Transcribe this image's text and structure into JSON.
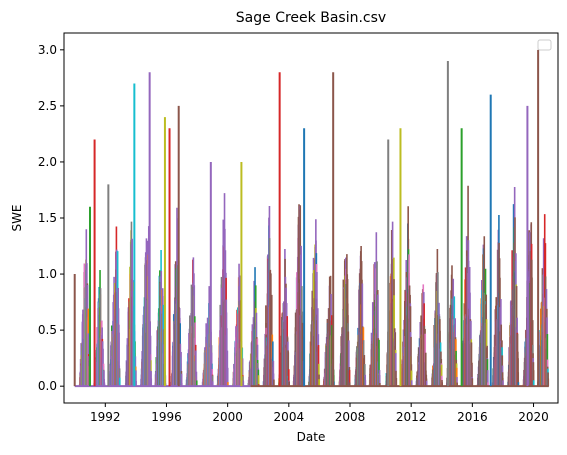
{
  "chart_data": {
    "type": "line",
    "title": "Sage Creek Basin.csv",
    "xlabel": "Date",
    "ylabel": "SWE",
    "xlim": [
      1989.3,
      2021.6
    ],
    "ylim": [
      -0.15,
      3.15
    ],
    "x_ticks": [
      1992,
      1996,
      2000,
      2004,
      2008,
      2012,
      2016,
      2020
    ],
    "x_tick_labels": [
      "1992",
      "1996",
      "2000",
      "2004",
      "2008",
      "2012",
      "2016",
      "2020"
    ],
    "y_ticks": [
      0.0,
      0.5,
      1.0,
      1.5,
      2.0,
      2.5,
      3.0
    ],
    "y_tick_labels": [
      "0.0",
      "0.5",
      "1.0",
      "1.5",
      "2.0",
      "2.5",
      "3.0"
    ],
    "grid": false,
    "legend": "top-right (empty)",
    "x_start": 1990.0,
    "x_end": 2021.0,
    "colors": [
      "#1f77b4",
      "#ff7f0e",
      "#2ca02c",
      "#d62728",
      "#9467bd",
      "#8c564b",
      "#e377c2",
      "#7f7f7f",
      "#bcbd22",
      "#17becf"
    ],
    "notable_peaks": [
      {
        "x": 1990.0,
        "y": 1.0,
        "color": "#8c564b"
      },
      {
        "x": 1991.0,
        "y": 1.6,
        "color": "#2ca02c"
      },
      {
        "x": 1991.3,
        "y": 2.2,
        "color": "#d62728"
      },
      {
        "x": 1992.2,
        "y": 1.8,
        "color": "#7f7f7f"
      },
      {
        "x": 1993.9,
        "y": 2.7,
        "color": "#17becf"
      },
      {
        "x": 1994.9,
        "y": 2.8,
        "color": "#9467bd"
      },
      {
        "x": 1995.9,
        "y": 2.4,
        "color": "#bcbd22"
      },
      {
        "x": 1996.2,
        "y": 2.3,
        "color": "#d62728"
      },
      {
        "x": 1996.8,
        "y": 2.5,
        "color": "#8c564b"
      },
      {
        "x": 1998.9,
        "y": 2.0,
        "color": "#9467bd"
      },
      {
        "x": 2000.9,
        "y": 2.0,
        "color": "#bcbd22"
      },
      {
        "x": 2003.4,
        "y": 2.8,
        "color": "#d62728"
      },
      {
        "x": 2005.0,
        "y": 2.3,
        "color": "#1f77b4"
      },
      {
        "x": 2006.9,
        "y": 2.8,
        "color": "#8c564b"
      },
      {
        "x": 2010.5,
        "y": 2.2,
        "color": "#7f7f7f"
      },
      {
        "x": 2011.3,
        "y": 2.3,
        "color": "#bcbd22"
      },
      {
        "x": 2014.4,
        "y": 2.9,
        "color": "#7f7f7f"
      },
      {
        "x": 2015.3,
        "y": 2.3,
        "color": "#2ca02c"
      },
      {
        "x": 2017.2,
        "y": 2.6,
        "color": "#1f77b4"
      },
      {
        "x": 2019.6,
        "y": 2.5,
        "color": "#9467bd"
      },
      {
        "x": 2020.3,
        "y": 3.0,
        "color": "#8c564b"
      }
    ]
  }
}
